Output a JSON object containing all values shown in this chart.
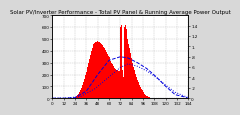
{
  "title": "Solar PV/Inverter Performance - Total PV Panel & Running Average Power Output",
  "bg_color": "#d8d8d8",
  "plot_bg": "#ffffff",
  "bar_color": "#ff0000",
  "avg_line_color": "#0000dd",
  "dot_line_color": "#0000dd",
  "grid_color": "#aaaaaa",
  "n_bars": 144,
  "bar_heights": [
    0,
    0,
    0,
    0,
    0,
    0,
    0,
    0,
    0,
    0,
    0,
    0,
    0,
    0,
    0,
    0,
    0,
    0,
    0,
    0,
    0,
    0,
    0,
    5,
    8,
    12,
    18,
    25,
    35,
    50,
    70,
    90,
    115,
    140,
    165,
    195,
    225,
    260,
    295,
    330,
    365,
    395,
    420,
    445,
    460,
    470,
    475,
    478,
    480,
    478,
    475,
    470,
    460,
    448,
    435,
    420,
    405,
    390,
    375,
    360,
    345,
    330,
    315,
    300,
    285,
    270,
    258,
    248,
    240,
    235,
    230,
    228,
    600,
    620,
    240,
    180,
    600,
    620,
    580,
    540,
    500,
    460,
    420,
    380,
    340,
    300,
    265,
    235,
    205,
    178,
    155,
    135,
    115,
    98,
    82,
    68,
    55,
    44,
    35,
    27,
    20,
    15,
    10,
    7,
    4,
    2,
    1,
    0,
    0,
    0,
    0,
    0,
    0,
    0,
    0,
    0,
    0,
    0,
    0,
    0,
    0,
    0,
    0,
    0,
    0,
    0,
    0,
    0,
    0,
    0,
    0,
    0,
    0,
    0,
    0,
    0,
    0,
    0,
    0,
    0,
    0,
    0,
    0,
    0
  ],
  "avg_x": [
    0,
    12,
    24,
    36,
    48,
    60,
    72,
    80,
    90,
    100,
    110,
    120,
    130,
    143
  ],
  "avg_y": [
    0,
    0,
    5,
    60,
    200,
    320,
    350,
    340,
    300,
    250,
    180,
    100,
    30,
    5
  ],
  "dot_x": [
    0,
    15,
    30,
    45,
    60,
    72,
    80,
    90,
    100,
    110,
    120,
    130,
    143
  ],
  "dot_y": [
    0,
    2,
    15,
    80,
    180,
    260,
    290,
    270,
    230,
    175,
    110,
    50,
    8
  ],
  "xlim": [
    0,
    143
  ],
  "ylim": [
    0,
    700
  ],
  "right_ylim": [
    0,
    1.6
  ],
  "right_ticks": [
    0.0,
    0.2,
    0.4,
    0.6,
    0.8,
    1.0,
    1.2,
    1.4
  ],
  "right_labels": [
    "0",
    ".2",
    ".4",
    ".6",
    ".8",
    "1.",
    "1.2",
    "1.4"
  ],
  "left_ticks": [
    0,
    100,
    200,
    300,
    400,
    500,
    600,
    700
  ],
  "left_labels": [
    "0",
    "100",
    "200",
    "300",
    "400",
    "500",
    "600",
    "700"
  ],
  "title_fontsize": 4.0,
  "tick_fontsize": 3.0
}
